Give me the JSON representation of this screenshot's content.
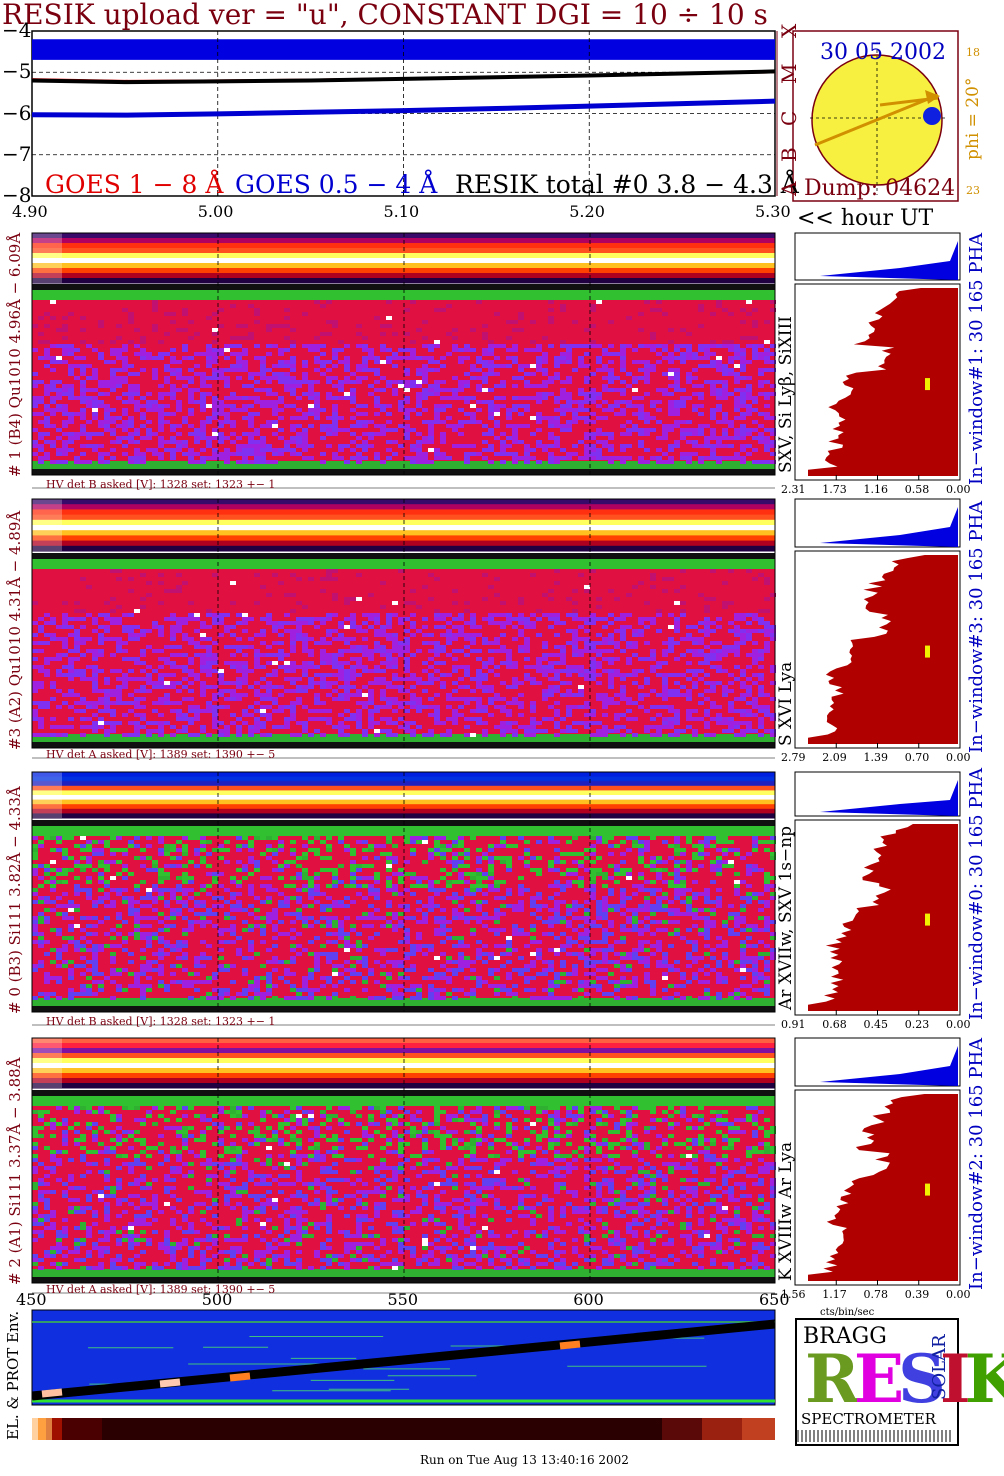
{
  "header": {
    "title": "RESIK upload ver = \"u\", CONSTANT  DGI =  10 ÷  10 s"
  },
  "chart_data": [
    {
      "type": "line",
      "ylim": [
        -8,
        -4
      ],
      "yticks": [
        "−4",
        "−5",
        "−6",
        "−7",
        "−8"
      ],
      "xlim": [
        4.9,
        5.3
      ],
      "xticks": [
        "4.90",
        "5.00",
        "5.10",
        "5.20",
        "5.30"
      ],
      "xlabel": "<< hour UT",
      "right_letters": [
        "X",
        "M",
        "C",
        "B",
        "A"
      ],
      "series": [
        {
          "name": "GOES 1 − 8 Å",
          "color": "#e00000",
          "x": [
            4.9,
            4.95,
            5.0,
            5.05,
            5.1,
            5.15,
            5.2,
            5.25,
            5.3
          ],
          "values": [
            -5.18,
            -5.22,
            -5.21,
            -5.19,
            -5.16,
            -5.12,
            -5.08,
            -5.03,
            -4.99
          ]
        },
        {
          "name": "GOES 0.5 − 4 Å",
          "color": "#0000d0",
          "x": [
            4.9,
            4.95,
            5.0,
            5.05,
            5.1,
            5.15,
            5.2,
            5.25,
            5.3
          ],
          "values": [
            -6.03,
            -6.04,
            -6.01,
            -5.97,
            -5.93,
            -5.88,
            -5.82,
            -5.76,
            -5.7
          ]
        },
        {
          "name": "RESIK total #0  3.8 − 4.3 Å",
          "color": "#000000",
          "x": [
            4.9,
            4.95,
            5.0,
            5.05,
            5.1,
            5.15,
            5.2,
            5.25,
            5.3
          ],
          "values": [
            -5.2,
            -5.24,
            -5.22,
            -5.2,
            -5.16,
            -5.12,
            -5.08,
            -5.03,
            -4.98
          ]
        }
      ]
    },
    {
      "type": "heatmap",
      "name": "# 1 (B4) Qu1010 4.96Å − 6.09Å",
      "lines": "SXV, Si Lyβ, SiXIII",
      "hv": "HV det B asked [V]:  1328 set:  1323 +−    1",
      "pha_label": "In−window#1:   30 165 PHA",
      "pha_xticks": [
        "2.31",
        "1.73",
        "1.16",
        "0.58",
        "0.00"
      ]
    },
    {
      "type": "heatmap",
      "name": "#3 (A2) Qu1010  4.31Å − 4.89Å",
      "lines": "S XVI Lya",
      "hv": "HV det A asked [V]:  1389 set:  1390 +−    5",
      "pha_label": "In−window#3:   30 165 PHA",
      "pha_xticks": [
        "2.79",
        "2.09",
        "1.39",
        "0.70",
        "0.00"
      ]
    },
    {
      "type": "heatmap",
      "name": "# 0 (B3) Si111  3.82Å − 4.33Å",
      "lines": "Ar XVIIw,  SXV 1s−np",
      "hv": "HV det B asked [V]:  1328 set:  1323 +−    1",
      "pha_label": "In−window#0:   30 165 PHA",
      "pha_xticks": [
        "0.91",
        "0.68",
        "0.45",
        "0.23",
        "0.00"
      ]
    },
    {
      "type": "heatmap",
      "name": "# 2 (A1) Si111  3.37Å − 3.88Å",
      "lines": "K XVIIIw  Ar Lya",
      "hv": "HV det A asked [V]:  1389 set:  1390 +−    5",
      "pha_label": "In−window#2:   30 165 PHA",
      "pha_xticks": [
        "1.56",
        "1.17",
        "0.78",
        "0.39",
        "0.00"
      ],
      "pha_xlabel": "cts/bin/sec"
    }
  ],
  "sun": {
    "date": "30 05 2002",
    "phi": "phi = 20°",
    "top_num": "18",
    "bottom_num": "23",
    "dump": "Dump: 04624"
  },
  "env": {
    "label": "EL. & PROT Env.",
    "xticks": [
      "450",
      "500",
      "550",
      "600",
      "650"
    ]
  },
  "logo": {
    "letters": "RESIK",
    "solar": "SOLAR",
    "bragg": "BRAGG",
    "spectrometer": "SPECTROMETER"
  },
  "footer": "Run on Tue Aug 13 13:40:16 2002"
}
